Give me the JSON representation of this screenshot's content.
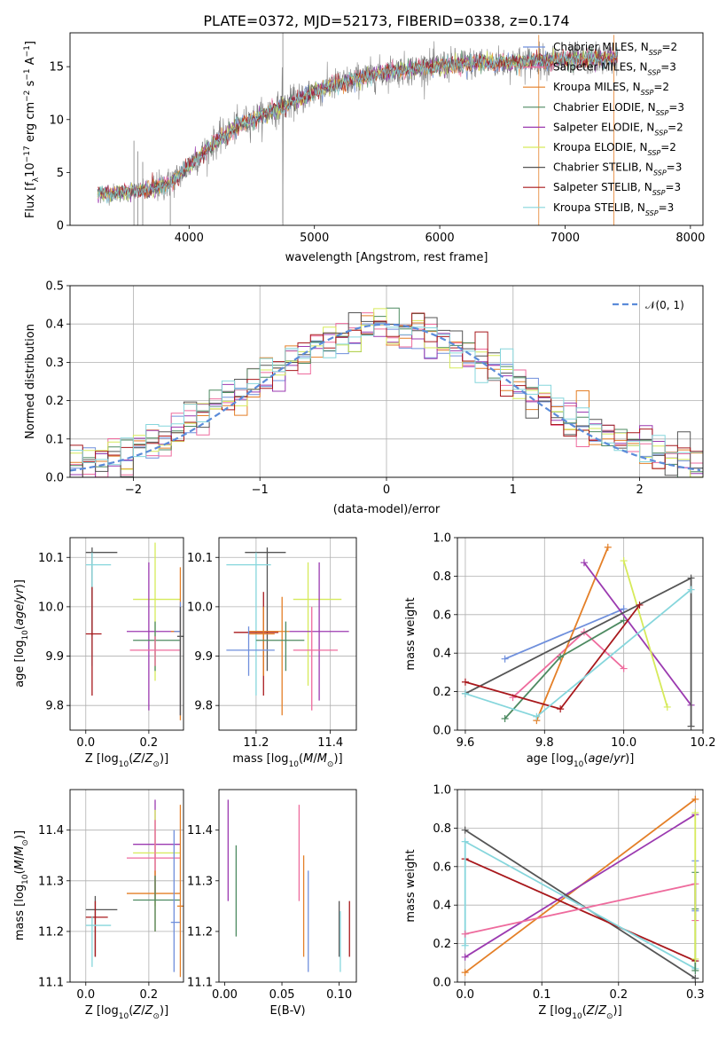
{
  "title": "PLATE=0372, MJD=52173, FIBERID=0338, z=0.174",
  "colors": {
    "chabrier_miles": "#6f8fdc",
    "salpeter_miles": "#ee6b9d",
    "kroupa_miles": "#e47f27",
    "chabrier_elodie": "#4d8a61",
    "salpeter_elodie": "#9b3ab0",
    "kroupa_elodie": "#d6ea5a",
    "chabrier_stelib": "#555555",
    "salpeter_stelib": "#a8181c",
    "kroupa_stelib": "#86d6dc",
    "normal_curve": "#5b8bd9",
    "data_gray": "#808080"
  },
  "chart_data": [
    {
      "id": "spectrum",
      "type": "line",
      "xlabel": "wavelength [Angstrom, rest frame]",
      "ylabel": "Flux [f_λ10^-17 erg cm^-2 s^-1 A^-1]",
      "xlim": [
        3050,
        8100
      ],
      "ylim": [
        0,
        18.2
      ],
      "xticks": [
        4000,
        5000,
        6000,
        7000,
        8000
      ],
      "yticks": [
        0,
        5,
        10,
        15
      ],
      "grid": false,
      "legend_position": "upper-right",
      "observed_envelope": {
        "x": [
          3270,
          3500,
          3700,
          3850,
          4000,
          4200,
          4400,
          4600,
          4800,
          5000,
          5200,
          5400,
          5600,
          5800,
          6000,
          6200,
          6400,
          6600,
          6800,
          7000,
          7200,
          7400
        ],
        "y": [
          3.0,
          3.1,
          3.4,
          4.0,
          5.6,
          7.8,
          9.5,
          10.5,
          11.5,
          12.6,
          13.4,
          14.0,
          14.6,
          14.8,
          15.1,
          15.3,
          15.4,
          15.4,
          15.6,
          15.6,
          15.7,
          15.8
        ]
      },
      "series": [
        {
          "name": "Chabrier MILES, N_SSP=2",
          "color_key": "chabrier_miles"
        },
        {
          "name": "Salpeter MILES, N_SSP=3",
          "color_key": "salpeter_miles"
        },
        {
          "name": "Kroupa MILES, N_SSP=2",
          "color_key": "kroupa_miles"
        },
        {
          "name": "Chabrier ELODIE, N_SSP=3",
          "color_key": "chabrier_elodie"
        },
        {
          "name": "Salpeter ELODIE, N_SSP=2",
          "color_key": "salpeter_elodie"
        },
        {
          "name": "Kroupa ELODIE, N_SSP=2",
          "color_key": "kroupa_elodie"
        },
        {
          "name": "Chabrier STELIB, N_SSP=3",
          "color_key": "chabrier_stelib"
        },
        {
          "name": "Salpeter STELIB, N_SSP=3",
          "color_key": "salpeter_stelib"
        },
        {
          "name": "Kroupa STELIB, N_SSP=3",
          "color_key": "kroupa_stelib"
        }
      ],
      "legend_labels": [
        {
          "pre": "Chabrier MILES, N",
          "sub": "SSP",
          "post": "=2"
        },
        {
          "pre": "Salpeter MILES, N",
          "sub": "SSP",
          "post": "=3"
        },
        {
          "pre": "Kroupa MILES, N",
          "sub": "SSP",
          "post": "=2"
        },
        {
          "pre": "Chabrier ELODIE, N",
          "sub": "SSP",
          "post": "=3"
        },
        {
          "pre": "Salpeter ELODIE, N",
          "sub": "SSP",
          "post": "=2"
        },
        {
          "pre": "Kroupa ELODIE, N",
          "sub": "SSP",
          "post": "=2"
        },
        {
          "pre": "Chabrier STELIB, N",
          "sub": "SSP",
          "post": "=3"
        },
        {
          "pre": "Salpeter STELIB, N",
          "sub": "SSP",
          "post": "=3"
        },
        {
          "pre": "Kroupa STELIB, N",
          "sub": "SSP",
          "post": "=3"
        }
      ]
    },
    {
      "id": "residuals",
      "type": "histogram",
      "xlabel": "(data-model)/error",
      "ylabel": "Normed distribution",
      "xlim": [
        -2.5,
        2.5
      ],
      "ylim": [
        0,
        0.5
      ],
      "xticks": [
        -2,
        -1,
        0,
        1,
        2
      ],
      "yticks": [
        0.0,
        0.1,
        0.2,
        0.3,
        0.4,
        0.5
      ],
      "grid": true,
      "legend_position": "upper-right",
      "legend_label": "𝒩(0, 1)",
      "bin_width": 0.1,
      "reference_curve": "standard normal N(0,1)"
    },
    {
      "id": "age_vs_Z",
      "type": "errorbar",
      "xlabel": "Z [log10(Z/Z⊙)]",
      "ylabel": "age [log10(age/yr)]",
      "xlim": [
        -0.05,
        0.31
      ],
      "ylim": [
        9.75,
        10.14
      ],
      "xticks": [
        0.0,
        0.2
      ],
      "yticks": [
        9.8,
        9.9,
        10.0,
        10.1
      ],
      "grid": true,
      "points": [
        {
          "x": 0.02,
          "y": 10.11,
          "xerr": [
            0.0,
            0.1
          ],
          "yerr": [
            9.94,
            10.12
          ],
          "color_key": "chabrier_stelib"
        },
        {
          "x": 0.02,
          "y": 10.085,
          "xerr": [
            0.0,
            0.08
          ],
          "yerr": [
            9.88,
            10.11
          ],
          "color_key": "kroupa_stelib"
        },
        {
          "x": 0.02,
          "y": 9.945,
          "xerr": [
            0.0,
            0.05
          ],
          "yerr": [
            9.82,
            10.04
          ],
          "color_key": "salpeter_stelib"
        },
        {
          "x": 0.22,
          "y": 10.015,
          "xerr": [
            0.15,
            0.3
          ],
          "yerr": [
            9.85,
            10.13
          ],
          "color_key": "kroupa_elodie"
        },
        {
          "x": 0.2,
          "y": 9.95,
          "xerr": [
            0.13,
            0.3
          ],
          "yerr": [
            9.79,
            10.09
          ],
          "color_key": "salpeter_elodie"
        },
        {
          "x": 0.22,
          "y": 9.932,
          "xerr": [
            0.15,
            0.3
          ],
          "yerr": [
            9.87,
            9.97
          ],
          "color_key": "chabrier_elodie"
        },
        {
          "x": 0.22,
          "y": 9.912,
          "xerr": [
            0.14,
            0.3
          ],
          "yerr": [
            9.88,
            9.94
          ],
          "color_key": "salpeter_miles"
        },
        {
          "x": 0.3,
          "y": 9.95,
          "xerr": [
            0.27,
            0.3
          ],
          "yerr": [
            9.77,
            10.08
          ],
          "color_key": "kroupa_miles"
        },
        {
          "x": 0.3,
          "y": 9.95,
          "xerr": [
            0.28,
            0.3
          ],
          "yerr": [
            9.78,
            10.01
          ],
          "color_key": "chabrier_miles"
        },
        {
          "x": 0.3,
          "y": 9.94,
          "xerr": [
            0.29,
            0.31
          ],
          "yerr": [
            9.78,
            10.0
          ],
          "color_key": "chabrier_stelib"
        }
      ]
    },
    {
      "id": "age_vs_mass",
      "type": "errorbar",
      "xlabel": "mass [log10(M/M⊙)]",
      "ylabel": "",
      "xlim": [
        11.1,
        11.47
      ],
      "ylim": [
        9.75,
        10.14
      ],
      "xticks": [
        11.2,
        11.4
      ],
      "yticks": [
        9.8,
        9.9,
        10.0,
        10.1
      ],
      "grid": true,
      "points": [
        {
          "x": 11.23,
          "y": 10.11,
          "xerr": [
            11.17,
            11.28
          ],
          "yerr": [
            9.87,
            10.12
          ],
          "color_key": "chabrier_stelib"
        },
        {
          "x": 11.2,
          "y": 10.085,
          "xerr": [
            11.12,
            11.24
          ],
          "yerr": [
            9.82,
            10.11
          ],
          "color_key": "kroupa_stelib"
        },
        {
          "x": 11.22,
          "y": 9.948,
          "xerr": [
            11.14,
            11.26
          ],
          "yerr": [
            9.82,
            10.03
          ],
          "color_key": "salpeter_stelib"
        },
        {
          "x": 11.22,
          "y": 9.945,
          "xerr": [
            11.18,
            11.25
          ],
          "yerr": [
            9.86,
            10.0
          ],
          "color_key": "kroupa_miles"
        },
        {
          "x": 11.27,
          "y": 9.95,
          "xerr": [
            11.18,
            11.29
          ],
          "yerr": [
            9.78,
            10.02
          ],
          "color_key": "kroupa_miles"
        },
        {
          "x": 11.34,
          "y": 10.015,
          "xerr": [
            11.3,
            11.43
          ],
          "yerr": [
            9.84,
            10.09
          ],
          "color_key": "kroupa_elodie"
        },
        {
          "x": 11.37,
          "y": 9.95,
          "xerr": [
            11.29,
            11.45
          ],
          "yerr": [
            9.81,
            10.09
          ],
          "color_key": "salpeter_elodie"
        },
        {
          "x": 11.28,
          "y": 9.932,
          "xerr": [
            11.2,
            11.33
          ],
          "yerr": [
            9.87,
            9.97
          ],
          "color_key": "chabrier_elodie"
        },
        {
          "x": 11.35,
          "y": 9.912,
          "xerr": [
            11.3,
            11.42
          ],
          "yerr": [
            9.79,
            10.0
          ],
          "color_key": "salpeter_miles"
        },
        {
          "x": 11.18,
          "y": 9.912,
          "xerr": [
            11.12,
            11.25
          ],
          "yerr": [
            9.86,
            9.96
          ],
          "color_key": "chabrier_miles"
        }
      ]
    },
    {
      "id": "weight_vs_age",
      "type": "line",
      "xlabel": "age [log10(age/yr)]",
      "ylabel": "mass weight",
      "xlim": [
        9.58,
        10.2
      ],
      "ylim": [
        0,
        1.0
      ],
      "xticks": [
        9.6,
        9.8,
        10.0,
        10.2
      ],
      "yticks": [
        0.0,
        0.2,
        0.4,
        0.6,
        0.8,
        1.0
      ],
      "grid": true,
      "series": [
        {
          "color_key": "chabrier_miles",
          "x": [
            9.7,
            10.0
          ],
          "y": [
            0.37,
            0.63
          ]
        },
        {
          "color_key": "salpeter_miles",
          "x": [
            9.72,
            9.9,
            10.0
          ],
          "y": [
            0.17,
            0.51,
            0.32
          ]
        },
        {
          "color_key": "kroupa_miles",
          "x": [
            9.78,
            9.96
          ],
          "y": [
            0.05,
            0.95
          ]
        },
        {
          "color_key": "chabrier_elodie",
          "x": [
            9.7,
            9.84,
            10.0
          ],
          "y": [
            0.06,
            0.38,
            0.57
          ]
        },
        {
          "color_key": "salpeter_elodie",
          "x": [
            9.9,
            10.17
          ],
          "y": [
            0.87,
            0.13
          ]
        },
        {
          "color_key": "kroupa_elodie",
          "x": [
            10.0,
            10.11
          ],
          "y": [
            0.88,
            0.12
          ]
        },
        {
          "color_key": "chabrier_stelib",
          "x": [
            9.6,
            10.17,
            10.17
          ],
          "y": [
            0.19,
            0.79,
            0.02
          ]
        },
        {
          "color_key": "salpeter_stelib",
          "x": [
            9.6,
            9.84,
            10.04
          ],
          "y": [
            0.25,
            0.11,
            0.65
          ]
        },
        {
          "color_key": "kroupa_stelib",
          "x": [
            9.6,
            9.78,
            10.17
          ],
          "y": [
            0.19,
            0.07,
            0.73
          ]
        }
      ]
    },
    {
      "id": "mass_vs_Z",
      "type": "errorbar",
      "xlabel": "Z [log10(Z/Z⊙)]",
      "ylabel": "mass [log10(M/M⊙)]",
      "xlim": [
        -0.05,
        0.31
      ],
      "ylim": [
        11.1,
        11.48
      ],
      "xticks": [
        0.0,
        0.2
      ],
      "yticks": [
        11.1,
        11.2,
        11.3,
        11.4
      ],
      "grid": true,
      "points": [
        {
          "x": 0.03,
          "y": 11.243,
          "xerr": [
            0.0,
            0.1
          ],
          "yerr": [
            11.15,
            11.27
          ],
          "color_key": "chabrier_stelib"
        },
        {
          "x": 0.03,
          "y": 11.228,
          "xerr": [
            0.0,
            0.07
          ],
          "yerr": [
            11.15,
            11.26
          ],
          "color_key": "salpeter_stelib"
        },
        {
          "x": 0.02,
          "y": 11.212,
          "xerr": [
            0.0,
            0.08
          ],
          "yerr": [
            11.13,
            11.23
          ],
          "color_key": "kroupa_stelib"
        },
        {
          "x": 0.22,
          "y": 11.372,
          "xerr": [
            0.15,
            0.3
          ],
          "yerr": [
            11.26,
            11.46
          ],
          "color_key": "salpeter_elodie"
        },
        {
          "x": 0.22,
          "y": 11.355,
          "xerr": [
            0.15,
            0.3
          ],
          "yerr": [
            11.25,
            11.44
          ],
          "color_key": "kroupa_elodie"
        },
        {
          "x": 0.22,
          "y": 11.345,
          "xerr": [
            0.13,
            0.3
          ],
          "yerr": [
            11.27,
            11.42
          ],
          "color_key": "salpeter_miles"
        },
        {
          "x": 0.22,
          "y": 11.275,
          "xerr": [
            0.13,
            0.3
          ],
          "yerr": [
            11.2,
            11.32
          ],
          "color_key": "kroupa_miles"
        },
        {
          "x": 0.22,
          "y": 11.262,
          "xerr": [
            0.15,
            0.3
          ],
          "yerr": [
            11.2,
            11.31
          ],
          "color_key": "chabrier_elodie"
        },
        {
          "x": 0.28,
          "y": 11.218,
          "xerr": [
            0.27,
            0.3
          ],
          "yerr": [
            11.12,
            11.4
          ],
          "color_key": "chabrier_miles"
        },
        {
          "x": 0.3,
          "y": 11.25,
          "xerr": [
            0.29,
            0.31
          ],
          "yerr": [
            11.11,
            11.45
          ],
          "color_key": "kroupa_miles"
        }
      ]
    },
    {
      "id": "mass_vs_ebv",
      "type": "errorbar",
      "xlabel": "E(B-V)",
      "ylabel": "",
      "xlim": [
        -0.005,
        0.115
      ],
      "ylim": [
        11.1,
        11.48
      ],
      "xticks": [
        0.0,
        0.05,
        0.1
      ],
      "yticks": [
        11.1,
        11.2,
        11.3,
        11.4
      ],
      "grid": false,
      "points": [
        {
          "x": 0.003,
          "y": 11.36,
          "yerr": [
            11.26,
            11.46
          ],
          "color_key": "salpeter_elodie"
        },
        {
          "x": 0.01,
          "y": 11.28,
          "yerr": [
            11.19,
            11.37
          ],
          "color_key": "chabrier_elodie"
        },
        {
          "x": 0.065,
          "y": 11.355,
          "yerr": [
            11.26,
            11.45
          ],
          "color_key": "salpeter_miles"
        },
        {
          "x": 0.069,
          "y": 11.25,
          "yerr": [
            11.15,
            11.35
          ],
          "color_key": "kroupa_miles"
        },
        {
          "x": 0.073,
          "y": 11.22,
          "yerr": [
            11.12,
            11.32
          ],
          "color_key": "chabrier_miles"
        },
        {
          "x": 0.1,
          "y": 11.21,
          "yerr": [
            11.15,
            11.26
          ],
          "color_key": "chabrier_stelib"
        },
        {
          "x": 0.101,
          "y": 11.18,
          "yerr": [
            11.12,
            11.24
          ],
          "color_key": "kroupa_stelib"
        },
        {
          "x": 0.109,
          "y": 11.2,
          "yerr": [
            11.15,
            11.26
          ],
          "color_key": "salpeter_stelib"
        }
      ]
    },
    {
      "id": "weight_vs_Z",
      "type": "line",
      "xlabel": "Z [log10(Z/Z⊙)]",
      "ylabel": "mass weight",
      "xlim": [
        -0.01,
        0.31
      ],
      "ylim": [
        0,
        1.0
      ],
      "xticks": [
        0.0,
        0.1,
        0.2,
        0.3
      ],
      "yticks": [
        0.0,
        0.2,
        0.4,
        0.6,
        0.8,
        1.0
      ],
      "grid": true,
      "series": [
        {
          "color_key": "kroupa_miles",
          "x": [
            0.0,
            0.3
          ],
          "y": [
            0.05,
            0.95
          ]
        },
        {
          "color_key": "salpeter_elodie",
          "x": [
            0.0,
            0.3
          ],
          "y": [
            0.13,
            0.87
          ]
        },
        {
          "color_key": "chabrier_stelib",
          "x": [
            0.0,
            0.3
          ],
          "y": [
            0.79,
            0.02
          ]
        },
        {
          "color_key": "salpeter_stelib",
          "x": [
            0.0,
            0.3
          ],
          "y": [
            0.64,
            0.11
          ]
        },
        {
          "color_key": "kroupa_stelib",
          "x": [
            0.0,
            0.0,
            0.3
          ],
          "y": [
            0.19,
            0.73,
            0.07
          ]
        },
        {
          "color_key": "salpeter_miles",
          "x": [
            0.0,
            0.3,
            0.3
          ],
          "y": [
            0.25,
            0.51,
            0.32
          ]
        },
        {
          "color_key": "chabrier_miles",
          "x": [
            0.3,
            0.3
          ],
          "y": [
            0.37,
            0.63
          ]
        },
        {
          "color_key": "chabrier_elodie",
          "x": [
            0.3,
            0.3,
            0.3
          ],
          "y": [
            0.06,
            0.38,
            0.57
          ]
        },
        {
          "color_key": "kroupa_elodie",
          "x": [
            0.3,
            0.3
          ],
          "y": [
            0.12,
            0.88
          ]
        }
      ]
    }
  ]
}
